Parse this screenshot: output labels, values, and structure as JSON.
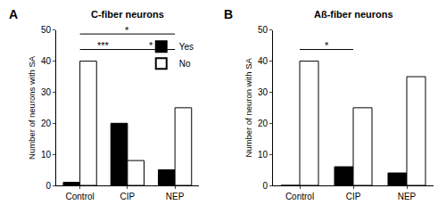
{
  "chart_data": [
    {
      "type": "bar",
      "panel_label": "A",
      "title": "C-fiber neurons",
      "y_label": "Number of neurons with SA",
      "categories": [
        "Control",
        "CIP",
        "NEP"
      ],
      "series": [
        {
          "name": "Yes",
          "color": "#000000",
          "values": [
            1,
            20,
            5
          ]
        },
        {
          "name": "No",
          "color": "#ffffff",
          "values": [
            40,
            8,
            25
          ]
        }
      ],
      "ylim": [
        0,
        50
      ],
      "yticks": [
        0,
        10,
        20,
        30,
        40,
        50
      ],
      "grid": false,
      "legend": "top-right",
      "annotations": [
        {
          "text": "***",
          "from": "Control",
          "to": "CIP"
        },
        {
          "text": "*",
          "from": "CIP",
          "to": "NEP"
        },
        {
          "text": "*",
          "from": "Control",
          "to": "NEP"
        }
      ]
    },
    {
      "type": "bar",
      "panel_label": "B",
      "title": "Aß-fiber neurons",
      "y_label": "Number of neuron with SA",
      "categories": [
        "Control",
        "CIP",
        "NEP"
      ],
      "series": [
        {
          "name": "Yes",
          "color": "#000000",
          "values": [
            0,
            6,
            4
          ]
        },
        {
          "name": "No",
          "color": "#ffffff",
          "values": [
            40,
            25,
            35
          ]
        }
      ],
      "ylim": [
        0,
        50
      ],
      "yticks": [
        0,
        10,
        20,
        30,
        40,
        50
      ],
      "grid": false,
      "legend": false,
      "annotations": [
        {
          "text": "*",
          "from": "Control",
          "to": "CIP"
        }
      ]
    }
  ]
}
